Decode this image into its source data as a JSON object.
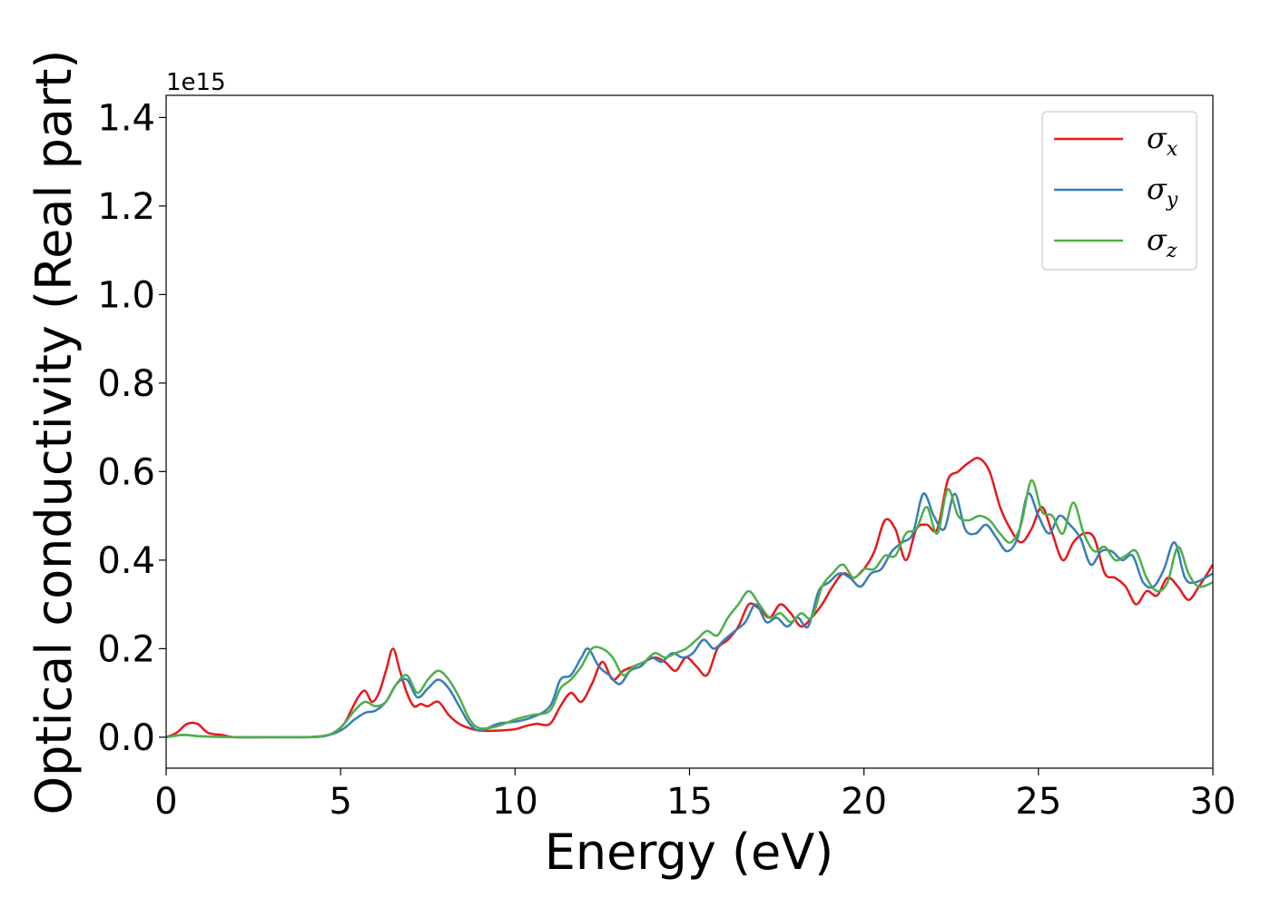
{
  "chart_data": {
    "type": "line",
    "xlabel": "Energy (eV)",
    "ylabel": "Optical conductivity (Real part)",
    "y_offset_text": "1e15",
    "xlim": [
      0,
      30
    ],
    "ylim": [
      -0.07,
      1.45
    ],
    "xticks": [
      0,
      5,
      10,
      15,
      20,
      25,
      30
    ],
    "xtick_labels": [
      "0",
      "5",
      "10",
      "15",
      "20",
      "25",
      "30"
    ],
    "yticks": [
      0.0,
      0.2,
      0.4,
      0.6,
      0.8,
      1.0,
      1.2,
      1.4
    ],
    "ytick_labels": [
      "0.0",
      "0.2",
      "0.4",
      "0.6",
      "0.8",
      "1.0",
      "1.2",
      "1.4"
    ],
    "grid": false,
    "legend_position": "top-right",
    "series": [
      {
        "name": "σx",
        "symbol": "σ",
        "subscript": "x",
        "color": "#e41a1c",
        "x": [
          0,
          0.3,
          0.6,
          0.9,
          1.2,
          1.6,
          2,
          3,
          4,
          4.5,
          4.8,
          5.1,
          5.3,
          5.5,
          5.7,
          5.9,
          6.1,
          6.3,
          6.5,
          6.7,
          6.9,
          7.1,
          7.3,
          7.5,
          7.8,
          8.1,
          8.4,
          8.7,
          9,
          9.5,
          10,
          10.3,
          10.6,
          11,
          11.3,
          11.6,
          11.9,
          12.2,
          12.5,
          12.8,
          13.1,
          13.4,
          13.7,
          14,
          14.3,
          14.6,
          14.9,
          15.2,
          15.5,
          15.8,
          16.1,
          16.4,
          16.7,
          17,
          17.3,
          17.6,
          17.9,
          18.2,
          18.5,
          18.8,
          19.1,
          19.4,
          19.7,
          20,
          20.3,
          20.6,
          20.9,
          21.2,
          21.5,
          21.8,
          22.1,
          22.4,
          22.7,
          23,
          23.3,
          23.6,
          23.9,
          24.2,
          24.5,
          24.8,
          25.1,
          25.4,
          25.7,
          26,
          26.3,
          26.6,
          26.9,
          27.2,
          27.5,
          27.8,
          28.1,
          28.4,
          28.7,
          29,
          29.3,
          29.6,
          30
        ],
        "y": [
          0,
          0.01,
          0.03,
          0.03,
          0.01,
          0.005,
          0,
          0,
          0,
          0.002,
          0.01,
          0.03,
          0.06,
          0.09,
          0.105,
          0.08,
          0.1,
          0.15,
          0.2,
          0.15,
          0.1,
          0.07,
          0.075,
          0.07,
          0.08,
          0.05,
          0.03,
          0.02,
          0.015,
          0.015,
          0.018,
          0.025,
          0.03,
          0.03,
          0.07,
          0.1,
          0.08,
          0.12,
          0.17,
          0.13,
          0.15,
          0.16,
          0.17,
          0.18,
          0.17,
          0.15,
          0.18,
          0.16,
          0.14,
          0.2,
          0.22,
          0.25,
          0.3,
          0.29,
          0.27,
          0.3,
          0.28,
          0.25,
          0.27,
          0.3,
          0.34,
          0.37,
          0.36,
          0.38,
          0.42,
          0.49,
          0.47,
          0.4,
          0.47,
          0.48,
          0.47,
          0.58,
          0.6,
          0.62,
          0.63,
          0.6,
          0.52,
          0.47,
          0.44,
          0.47,
          0.52,
          0.46,
          0.4,
          0.44,
          0.46,
          0.45,
          0.37,
          0.36,
          0.34,
          0.3,
          0.33,
          0.32,
          0.36,
          0.34,
          0.31,
          0.34,
          0.39
        ]
      },
      {
        "name": "σy",
        "symbol": "σ",
        "subscript": "y",
        "color": "#377eb8",
        "x": [
          0,
          0.5,
          1,
          2,
          3,
          4,
          4.5,
          4.8,
          5.1,
          5.4,
          5.7,
          6,
          6.3,
          6.6,
          6.9,
          7.2,
          7.5,
          7.8,
          8.1,
          8.4,
          8.7,
          9,
          9.5,
          10,
          10.5,
          11,
          11.3,
          11.6,
          11.9,
          12.1,
          12.4,
          12.7,
          13,
          13.3,
          13.6,
          13.9,
          14.2,
          14.5,
          14.8,
          15.1,
          15.4,
          15.7,
          16,
          16.3,
          16.6,
          16.9,
          17.2,
          17.5,
          17.8,
          18.1,
          18.4,
          18.7,
          19,
          19.3,
          19.6,
          19.9,
          20.2,
          20.5,
          20.8,
          21.1,
          21.4,
          21.7,
          22,
          22.3,
          22.6,
          22.9,
          23.2,
          23.5,
          23.8,
          24.1,
          24.4,
          24.7,
          25,
          25.3,
          25.6,
          25.9,
          26.2,
          26.5,
          26.8,
          27.1,
          27.4,
          27.7,
          28,
          28.3,
          28.6,
          28.9,
          29.2,
          29.5,
          30
        ],
        "y": [
          0,
          0.005,
          0.002,
          0,
          0,
          0,
          0.002,
          0.008,
          0.02,
          0.04,
          0.055,
          0.06,
          0.08,
          0.12,
          0.13,
          0.09,
          0.11,
          0.13,
          0.11,
          0.07,
          0.03,
          0.015,
          0.03,
          0.035,
          0.045,
          0.07,
          0.13,
          0.14,
          0.18,
          0.2,
          0.16,
          0.14,
          0.12,
          0.15,
          0.16,
          0.18,
          0.17,
          0.19,
          0.18,
          0.19,
          0.22,
          0.2,
          0.22,
          0.24,
          0.26,
          0.3,
          0.26,
          0.27,
          0.25,
          0.27,
          0.25,
          0.33,
          0.35,
          0.37,
          0.36,
          0.34,
          0.37,
          0.38,
          0.42,
          0.44,
          0.46,
          0.55,
          0.5,
          0.47,
          0.55,
          0.47,
          0.46,
          0.48,
          0.45,
          0.42,
          0.45,
          0.55,
          0.5,
          0.46,
          0.5,
          0.48,
          0.45,
          0.39,
          0.42,
          0.42,
          0.4,
          0.41,
          0.35,
          0.34,
          0.38,
          0.44,
          0.36,
          0.35,
          0.37
        ]
      },
      {
        "name": "σz",
        "symbol": "σ",
        "subscript": "z",
        "color": "#4daf4a",
        "x": [
          0,
          0.5,
          1,
          2,
          3,
          4,
          4.5,
          4.8,
          5.1,
          5.4,
          5.7,
          6,
          6.3,
          6.6,
          6.9,
          7.2,
          7.5,
          7.8,
          8.1,
          8.4,
          8.7,
          9,
          9.5,
          10,
          10.5,
          11,
          11.3,
          11.6,
          11.9,
          12.2,
          12.5,
          12.8,
          13.1,
          13.4,
          13.7,
          14,
          14.3,
          14.6,
          14.9,
          15.2,
          15.5,
          15.8,
          16.1,
          16.4,
          16.7,
          17,
          17.3,
          17.6,
          17.9,
          18.2,
          18.5,
          18.8,
          19.1,
          19.4,
          19.7,
          20,
          20.3,
          20.6,
          20.9,
          21.2,
          21.5,
          21.8,
          22.1,
          22.4,
          22.7,
          23,
          23.3,
          23.6,
          23.9,
          24.2,
          24.5,
          24.8,
          25.1,
          25.4,
          25.7,
          26,
          26.3,
          26.6,
          26.9,
          27.2,
          27.5,
          27.8,
          28.1,
          28.4,
          28.7,
          29,
          29.3,
          29.6,
          30
        ],
        "y": [
          0,
          0.005,
          0.002,
          0,
          0,
          0,
          0.003,
          0.01,
          0.03,
          0.06,
          0.08,
          0.07,
          0.08,
          0.12,
          0.14,
          0.1,
          0.13,
          0.15,
          0.13,
          0.09,
          0.04,
          0.02,
          0.025,
          0.04,
          0.05,
          0.06,
          0.11,
          0.13,
          0.16,
          0.2,
          0.2,
          0.18,
          0.14,
          0.16,
          0.17,
          0.19,
          0.18,
          0.19,
          0.2,
          0.22,
          0.24,
          0.23,
          0.27,
          0.3,
          0.33,
          0.3,
          0.27,
          0.28,
          0.26,
          0.28,
          0.27,
          0.34,
          0.37,
          0.39,
          0.36,
          0.38,
          0.38,
          0.41,
          0.41,
          0.46,
          0.47,
          0.52,
          0.46,
          0.56,
          0.5,
          0.49,
          0.5,
          0.49,
          0.46,
          0.44,
          0.48,
          0.58,
          0.51,
          0.5,
          0.46,
          0.53,
          0.46,
          0.42,
          0.43,
          0.4,
          0.41,
          0.42,
          0.36,
          0.33,
          0.35,
          0.43,
          0.37,
          0.34,
          0.35
        ]
      }
    ]
  }
}
